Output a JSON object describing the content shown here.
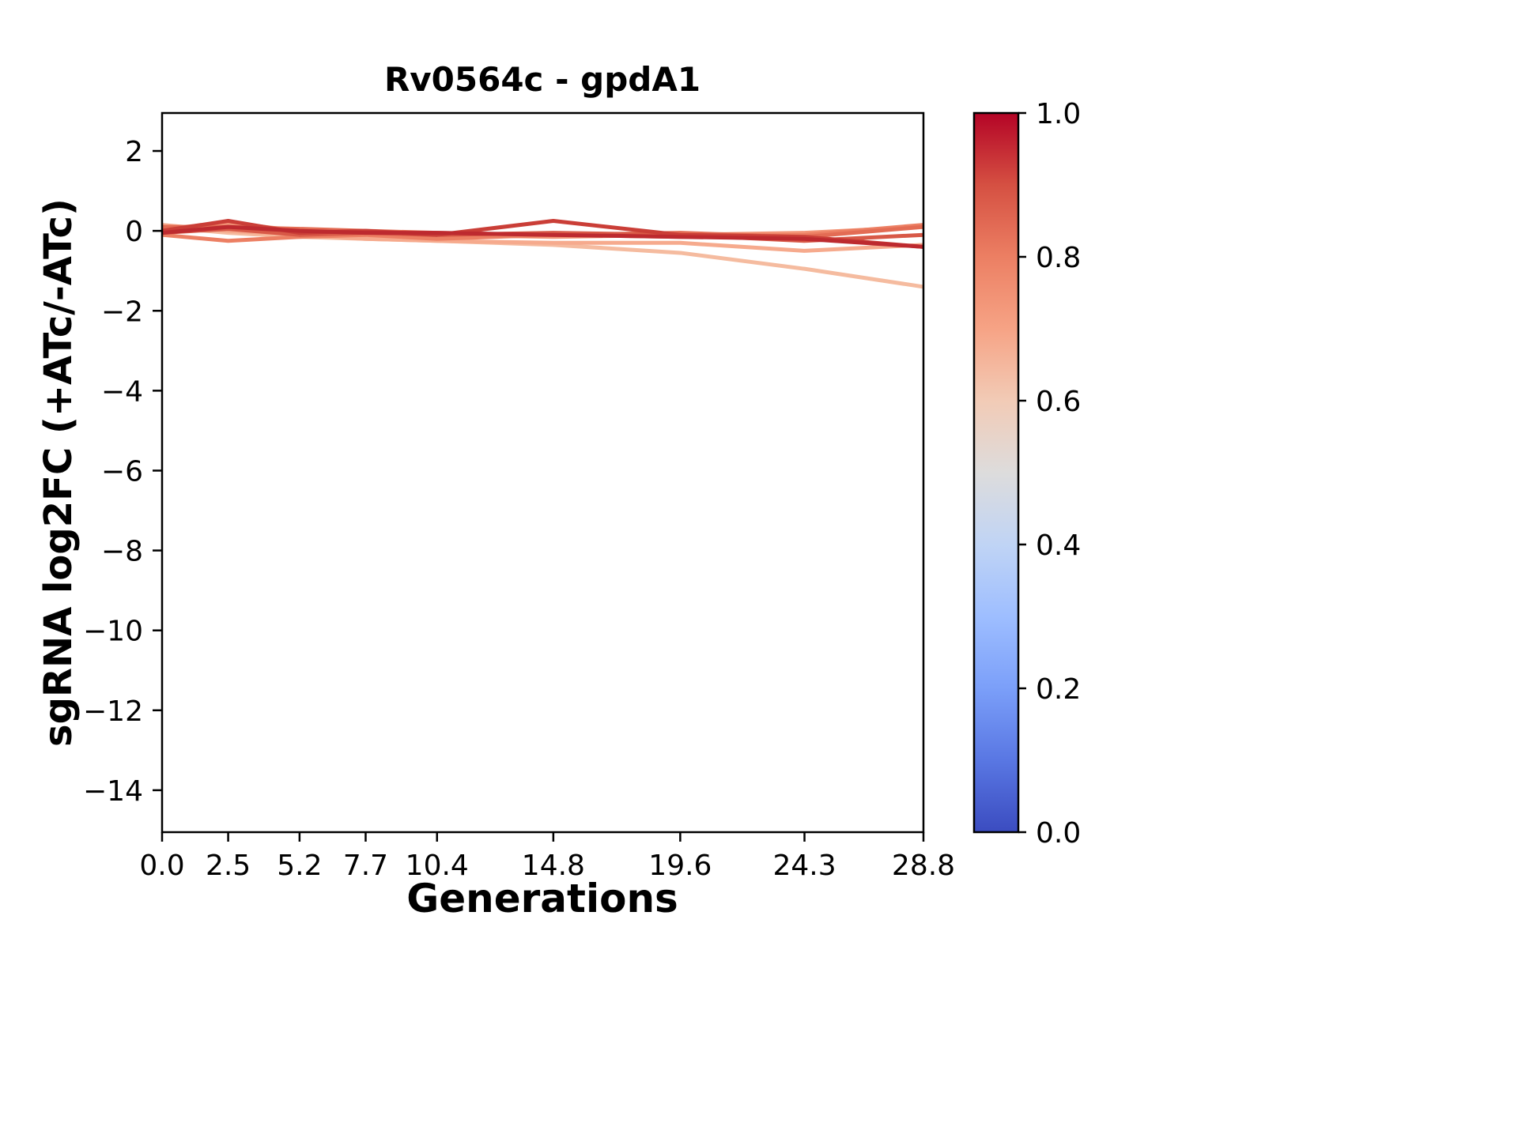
{
  "chart_data": {
    "type": "line",
    "title": "Rv0564c - gpdA1",
    "xlabel": "Generations",
    "ylabel": "sgRNA log2FC (+ATc/-ATc)",
    "x_values": [
      0.0,
      2.5,
      5.2,
      7.7,
      10.4,
      14.8,
      19.6,
      24.3,
      28.8
    ],
    "x_tick_labels": [
      "0.0",
      "2.5",
      "5.2",
      "7.7",
      "10.4",
      "14.8",
      "19.6",
      "24.3",
      "28.8"
    ],
    "xlim": [
      0.0,
      28.8
    ],
    "y_tick_values": [
      2,
      0,
      -2,
      -4,
      -6,
      -8,
      -10,
      -12,
      -14
    ],
    "y_tick_labels": [
      "2",
      "0",
      "−2",
      "−4",
      "−6",
      "−8",
      "−10",
      "−12",
      "−14"
    ],
    "ylim": [
      -15.05,
      2.95
    ],
    "grid": false,
    "legend": "none",
    "series": [
      {
        "colormap_value": 0.65,
        "color": "#f5bb9f",
        "values": [
          0.1,
          -0.05,
          -0.15,
          -0.2,
          -0.25,
          -0.35,
          -0.55,
          -0.95,
          -1.4
        ]
      },
      {
        "colormap_value": 0.7,
        "color": "#f6aa8d",
        "values": [
          0.15,
          0.0,
          -0.1,
          -0.2,
          -0.25,
          -0.3,
          -0.3,
          -0.5,
          -0.35
        ]
      },
      {
        "colormap_value": 0.75,
        "color": "#f39577",
        "values": [
          0.05,
          0.2,
          0.0,
          -0.05,
          -0.1,
          -0.15,
          -0.1,
          -0.05,
          0.1
        ]
      },
      {
        "colormap_value": 0.8,
        "color": "#ec7f63",
        "values": [
          -0.1,
          -0.25,
          -0.15,
          -0.1,
          -0.2,
          -0.1,
          -0.15,
          -0.1,
          0.15
        ]
      },
      {
        "colormap_value": 0.84,
        "color": "#e36c54",
        "values": [
          0.1,
          0.1,
          0.05,
          0.0,
          -0.05,
          -0.1,
          -0.05,
          -0.15,
          0.1
        ]
      },
      {
        "colormap_value": 0.88,
        "color": "#d85947",
        "values": [
          -0.05,
          0.05,
          -0.1,
          -0.05,
          -0.1,
          -0.05,
          -0.1,
          -0.25,
          -0.1
        ]
      },
      {
        "colormap_value": 0.92,
        "color": "#ca3e37",
        "values": [
          0.0,
          0.25,
          -0.05,
          0.0,
          -0.1,
          0.25,
          -0.1,
          -0.15,
          -0.4
        ]
      },
      {
        "colormap_value": 0.96,
        "color": "#bd2a2f",
        "values": [
          -0.05,
          0.1,
          0.0,
          -0.05,
          -0.05,
          -0.1,
          -0.15,
          -0.2,
          -0.4
        ]
      }
    ],
    "colorbar": {
      "colormap": "coolwarm",
      "min": 0.0,
      "max": 1.0,
      "tick_values": [
        0.0,
        0.2,
        0.4,
        0.6,
        0.8,
        1.0
      ],
      "tick_labels": [
        "0.0",
        "0.2",
        "0.4",
        "0.6",
        "0.8",
        "1.0"
      ],
      "gradient_stops": [
        {
          "at": 0.0,
          "color": "#3b4cc0"
        },
        {
          "at": 0.1,
          "color": "#5977e3"
        },
        {
          "at": 0.2,
          "color": "#7b9ff9"
        },
        {
          "at": 0.3,
          "color": "#9ebeff"
        },
        {
          "at": 0.4,
          "color": "#c0d4f5"
        },
        {
          "at": 0.5,
          "color": "#dddcdc"
        },
        {
          "at": 0.6,
          "color": "#f2cbb6"
        },
        {
          "at": 0.7,
          "color": "#f6a385"
        },
        {
          "at": 0.8,
          "color": "#ec7f63"
        },
        {
          "at": 0.9,
          "color": "#d55042"
        },
        {
          "at": 1.0,
          "color": "#b40426"
        }
      ]
    }
  }
}
